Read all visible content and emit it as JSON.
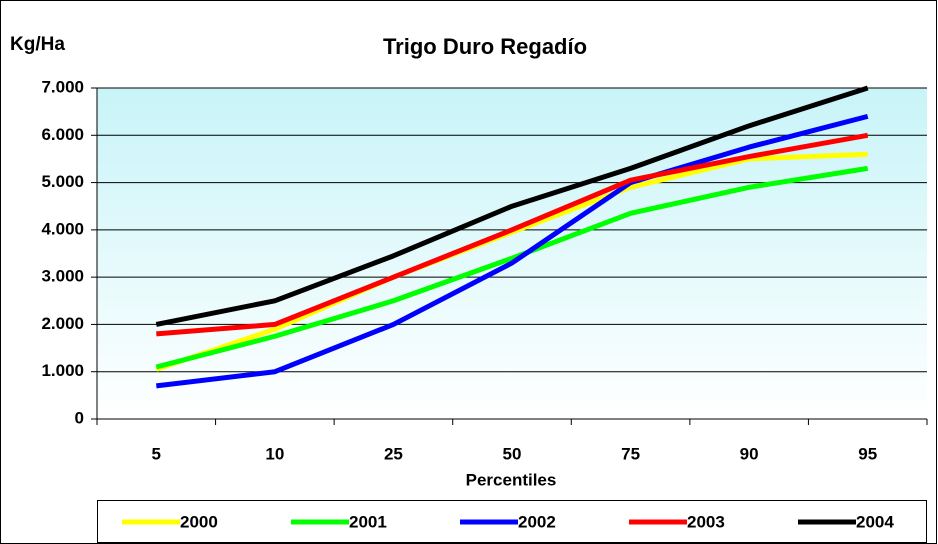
{
  "chart_data": {
    "type": "line",
    "title": "Trigo Duro Regadío",
    "y_label": "Kg/Ha",
    "x_label": "Percentiles",
    "categories": [
      "5",
      "10",
      "25",
      "50",
      "75",
      "90",
      "95"
    ],
    "series": [
      {
        "name": "2000",
        "color": "#ffff00",
        "values": [
          1050,
          1900,
          3000,
          3950,
          4900,
          5500,
          5600
        ]
      },
      {
        "name": "2001",
        "color": "#00ff00",
        "values": [
          1100,
          1750,
          2500,
          3400,
          4350,
          4900,
          5300
        ]
      },
      {
        "name": "2002",
        "color": "#0000ff",
        "values": [
          700,
          1000,
          2000,
          3300,
          5000,
          5750,
          6400
        ]
      },
      {
        "name": "2003",
        "color": "#ff0000",
        "values": [
          1800,
          2000,
          3000,
          4000,
          5050,
          5550,
          6000
        ]
      },
      {
        "name": "2004",
        "color": "#000000",
        "values": [
          2000,
          2500,
          3450,
          4500,
          5300,
          6200,
          7000
        ]
      }
    ],
    "ylim": [
      0,
      7000
    ],
    "yticks": [
      0,
      {
        "value": 1000,
        "label": "1.000"
      },
      {
        "value": 2000,
        "label": "2.000"
      },
      {
        "value": 3000,
        "label": "3.000"
      },
      {
        "value": 4000,
        "label": "4.000"
      },
      {
        "value": 5000,
        "label": "5.000"
      },
      {
        "value": 6000,
        "label": "6.000"
      },
      {
        "value": 7000,
        "label": "7.000"
      }
    ],
    "grid": true,
    "legend": "bottom"
  }
}
